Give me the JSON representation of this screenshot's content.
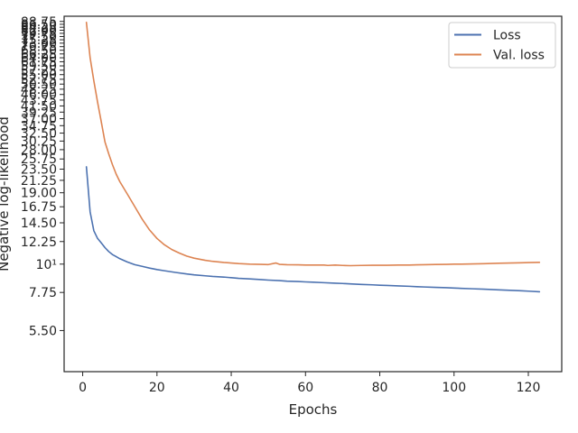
{
  "chart_data": {
    "type": "line",
    "xlabel": "Epochs",
    "ylabel": "Negative log-likelihood",
    "xlim": [
      -5,
      129
    ],
    "ylim": [
      3.8,
      93.0
    ],
    "yscale": "log",
    "grid": false,
    "legend_position": "top-right",
    "xticks": [
      0,
      20,
      40,
      60,
      80,
      100,
      120
    ],
    "yticks": [
      {
        "value": 5.5,
        "label": "5.50"
      },
      {
        "value": 7.75,
        "label": "7.75"
      },
      {
        "value": 10,
        "label": "10¹"
      },
      {
        "value": 12.25,
        "label": "12.25"
      },
      {
        "value": 14.5,
        "label": "14.50"
      },
      {
        "value": 16.75,
        "label": "16.75"
      },
      {
        "value": 19.0,
        "label": "19.00"
      },
      {
        "value": 21.25,
        "label": "21.25"
      },
      {
        "value": 23.5,
        "label": "23.50"
      },
      {
        "value": 25.75,
        "label": "25.75"
      },
      {
        "value": 28.0,
        "label": "28.00"
      },
      {
        "value": 30.25,
        "label": "30.25"
      },
      {
        "value": 32.5,
        "label": "32.50"
      },
      {
        "value": 34.75,
        "label": "34.75"
      },
      {
        "value": 37.0,
        "label": "37.00"
      },
      {
        "value": 39.25,
        "label": "39.25"
      },
      {
        "value": 41.5,
        "label": "41.50"
      },
      {
        "value": 43.75,
        "label": "43.75"
      },
      {
        "value": 46.0,
        "label": "46.00"
      },
      {
        "value": 48.25,
        "label": "48.25"
      },
      {
        "value": 50.5,
        "label": "50.50"
      },
      {
        "value": 52.75,
        "label": "52.75"
      },
      {
        "value": 55.0,
        "label": "55.00"
      },
      {
        "value": 57.25,
        "label": "57.25"
      },
      {
        "value": 59.5,
        "label": "59.50"
      },
      {
        "value": 61.75,
        "label": "61.75"
      },
      {
        "value": 64.0,
        "label": "64.00"
      },
      {
        "value": 66.25,
        "label": "66.25"
      },
      {
        "value": 68.5,
        "label": "68.50"
      },
      {
        "value": 70.75,
        "label": "70.75"
      },
      {
        "value": 73.0,
        "label": "73.00"
      },
      {
        "value": 75.25,
        "label": "75.25"
      },
      {
        "value": 77.5,
        "label": "77.50"
      },
      {
        "value": 79.75,
        "label": "79.75"
      },
      {
        "value": 82.0,
        "label": "82.00"
      },
      {
        "value": 84.25,
        "label": "84.25"
      },
      {
        "value": 86.5,
        "label": "86.50"
      },
      {
        "value": 88.75,
        "label": "88.75"
      }
    ],
    "series": [
      {
        "name": "Loss",
        "color": "#4c72b0",
        "x": [
          1,
          2,
          3,
          4,
          5,
          6,
          7,
          8,
          9,
          10,
          12,
          14,
          16,
          18,
          20,
          22,
          25,
          28,
          30,
          33,
          35,
          38,
          40,
          42,
          45,
          48,
          50,
          53,
          55,
          58,
          60,
          62,
          65,
          68,
          70,
          72,
          75,
          78,
          80,
          82,
          85,
          88,
          90,
          92,
          95,
          98,
          100,
          102,
          105,
          108,
          110,
          112,
          115,
          118,
          120,
          123
        ],
        "y": [
          24.0,
          16.0,
          13.5,
          12.6,
          12.1,
          11.6,
          11.2,
          10.9,
          10.7,
          10.5,
          10.2,
          9.95,
          9.8,
          9.65,
          9.52,
          9.42,
          9.28,
          9.15,
          9.08,
          9.0,
          8.95,
          8.9,
          8.85,
          8.8,
          8.75,
          8.7,
          8.66,
          8.62,
          8.58,
          8.55,
          8.52,
          8.5,
          8.46,
          8.42,
          8.4,
          8.37,
          8.33,
          8.3,
          8.27,
          8.25,
          8.22,
          8.19,
          8.16,
          8.14,
          8.11,
          8.09,
          8.06,
          8.04,
          8.01,
          7.98,
          7.96,
          7.93,
          7.9,
          7.87,
          7.84,
          7.8
        ]
      },
      {
        "name": "Val. loss",
        "color": "#dd8452",
        "x": [
          1,
          2,
          3,
          4,
          5,
          6,
          7,
          8,
          9,
          10,
          12,
          14,
          16,
          18,
          20,
          22,
          24,
          26,
          28,
          30,
          33,
          35,
          38,
          40,
          42,
          45,
          48,
          50,
          52,
          53,
          55,
          58,
          60,
          62,
          65,
          66,
          68,
          70,
          72,
          75,
          78,
          80,
          82,
          85,
          88,
          90,
          92,
          95,
          98,
          100,
          102,
          105,
          108,
          110,
          112,
          115,
          118,
          120,
          123
        ],
        "y": [
          88.0,
          64.0,
          52.0,
          43.0,
          36.0,
          30.0,
          27.0,
          24.5,
          22.5,
          21.0,
          18.8,
          16.8,
          15.0,
          13.6,
          12.6,
          11.9,
          11.4,
          11.05,
          10.75,
          10.55,
          10.35,
          10.25,
          10.15,
          10.1,
          10.05,
          10.0,
          9.98,
          9.96,
          10.1,
          9.98,
          9.95,
          9.94,
          9.92,
          9.92,
          9.92,
          9.88,
          9.92,
          9.88,
          9.86,
          9.88,
          9.9,
          9.9,
          9.9,
          9.92,
          9.92,
          9.94,
          9.95,
          9.97,
          9.98,
          10.0,
          10.0,
          10.02,
          10.04,
          10.06,
          10.08,
          10.1,
          10.12,
          10.14,
          10.16
        ]
      }
    ]
  }
}
